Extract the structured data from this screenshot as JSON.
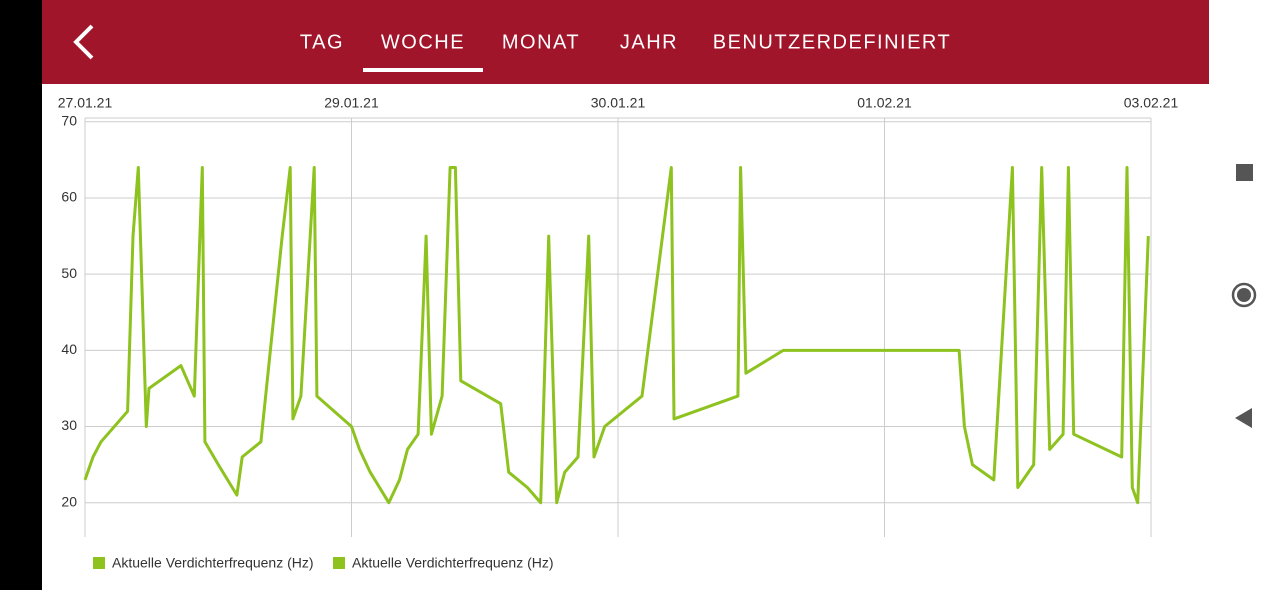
{
  "tabs": [
    "TAG",
    "WOCHE",
    "MONAT",
    "JAHR",
    "BENUTZERDEFINIERT"
  ],
  "active_tab": 1,
  "chart_data": {
    "type": "line",
    "xlim": [
      0,
      4
    ],
    "xticks": [
      {
        "value": 0,
        "label": "27.01.21"
      },
      {
        "value": 1,
        "label": "29.01.21"
      },
      {
        "value": 2,
        "label": "30.01.21"
      },
      {
        "value": 3,
        "label": "01.02.21"
      },
      {
        "value": 4,
        "label": "03.02.21"
      }
    ],
    "ylim": [
      15.5,
      70.5
    ],
    "yticks": [
      20,
      30,
      40,
      50,
      60,
      70
    ],
    "grid": true,
    "legend_entries": [
      "Aktuelle Verdichterfrequenz (Hz)",
      "Aktuelle Verdichterfrequenz (Hz)"
    ],
    "series": [
      {
        "name": "Aktuelle Verdichterfrequenz (Hz)",
        "color": "#8dc21f",
        "x": [
          0.0,
          0.03,
          0.06,
          0.16,
          0.18,
          0.2,
          0.23,
          0.24,
          0.36,
          0.41,
          0.44,
          0.45,
          0.5,
          0.57,
          0.59,
          0.66,
          0.74,
          0.77,
          0.78,
          0.81,
          0.86,
          0.87,
          1.0,
          1.03,
          1.07,
          1.14,
          1.18,
          1.21,
          1.25,
          1.28,
          1.3,
          1.34,
          1.37,
          1.39,
          1.41,
          1.56,
          1.59,
          1.66,
          1.71,
          1.74,
          1.77,
          1.8,
          1.85,
          1.89,
          1.91,
          1.95,
          2.09,
          2.2,
          2.21,
          2.45,
          2.46,
          2.48,
          2.62,
          3.28,
          3.3,
          3.33,
          3.41,
          3.48,
          3.5,
          3.56,
          3.59,
          3.62,
          3.67,
          3.69,
          3.71,
          3.89,
          3.91,
          3.93,
          3.95,
          3.99
        ],
        "values": [
          23,
          26,
          28,
          32,
          55,
          64,
          30,
          35,
          38,
          34,
          64,
          28,
          25,
          21,
          26,
          28,
          55,
          64,
          31,
          34,
          64,
          34,
          30,
          27,
          24,
          20,
          23,
          27,
          29,
          55,
          29,
          34,
          64,
          64,
          36,
          33,
          24,
          22,
          20,
          55,
          20,
          24,
          26,
          55,
          26,
          30,
          34,
          64,
          31,
          34,
          64,
          37,
          40,
          40,
          30,
          25,
          23,
          64,
          22,
          25,
          64,
          27,
          29,
          64,
          29,
          26,
          64,
          22,
          20,
          55
        ]
      }
    ]
  }
}
